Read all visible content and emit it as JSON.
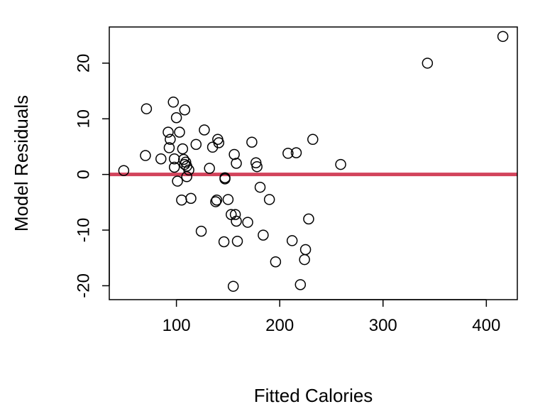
{
  "chart_data": {
    "type": "scatter",
    "title": "",
    "xlabel": "Fitted Calories",
    "ylabel": "Model Residuals",
    "xlim": [
      35,
      430
    ],
    "ylim": [
      -22.5,
      26.5
    ],
    "xticks": [
      100,
      200,
      300,
      400
    ],
    "yticks": [
      -20,
      -10,
      0,
      10,
      20
    ],
    "xtick_labels": [
      "100",
      "200",
      "300",
      "400"
    ],
    "ytick_labels": [
      "-20",
      "-10",
      "0",
      "10",
      "20"
    ],
    "grid": false,
    "reference_line": {
      "y": 0,
      "color": "#D2435B"
    },
    "point_color": "#000000",
    "series": [
      {
        "points": [
          [
            49,
            0.7
          ],
          [
            71,
            11.8
          ],
          [
            70,
            3.4
          ],
          [
            85,
            2.8
          ],
          [
            92,
            7.6
          ],
          [
            93,
            4.8
          ],
          [
            94,
            6.3
          ],
          [
            97,
            13.0
          ],
          [
            98,
            2.8
          ],
          [
            98,
            1.3
          ],
          [
            100,
            10.2
          ],
          [
            101,
            -1.2
          ],
          [
            103,
            7.6
          ],
          [
            105,
            -4.6
          ],
          [
            106,
            4.6
          ],
          [
            107,
            2.7
          ],
          [
            108,
            11.6
          ],
          [
            108,
            1.8
          ],
          [
            109,
            2.2
          ],
          [
            110,
            1.5
          ],
          [
            110,
            -0.4
          ],
          [
            112,
            0.8
          ],
          [
            114,
            -4.3
          ],
          [
            119,
            5.4
          ],
          [
            124,
            -10.2
          ],
          [
            127,
            8.0
          ],
          [
            132,
            1.1
          ],
          [
            135,
            4.9
          ],
          [
            138,
            -4.9
          ],
          [
            139,
            -4.6
          ],
          [
            140,
            6.3
          ],
          [
            141,
            5.7
          ],
          [
            146,
            -12.1
          ],
          [
            147,
            -0.6
          ],
          [
            147,
            -0.8
          ],
          [
            150,
            -4.5
          ],
          [
            153,
            -7.2
          ],
          [
            155,
            -20.1
          ],
          [
            156,
            3.6
          ],
          [
            157,
            -7.2
          ],
          [
            158,
            -8.4
          ],
          [
            158,
            2.0
          ],
          [
            159,
            -12.0
          ],
          [
            169,
            -8.6
          ],
          [
            173,
            5.8
          ],
          [
            177,
            2.1
          ],
          [
            178,
            1.4
          ],
          [
            181,
            -2.3
          ],
          [
            184,
            -10.9
          ],
          [
            190,
            -4.5
          ],
          [
            196,
            -15.7
          ],
          [
            208,
            3.8
          ],
          [
            212,
            -11.9
          ],
          [
            216,
            3.9
          ],
          [
            220,
            -19.8
          ],
          [
            224,
            -15.3
          ],
          [
            225,
            -13.5
          ],
          [
            228,
            -8.0
          ],
          [
            232,
            6.3
          ],
          [
            259,
            1.8
          ],
          [
            343,
            20.0
          ],
          [
            416,
            24.8
          ]
        ]
      }
    ]
  }
}
